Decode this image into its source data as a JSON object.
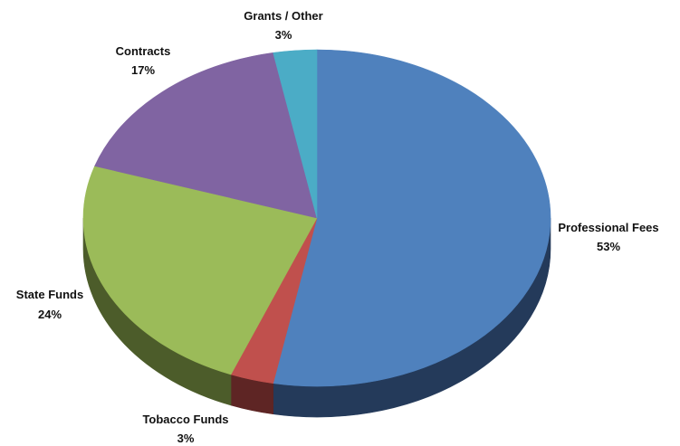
{
  "chart_data": {
    "type": "pie",
    "style": "3d",
    "legend": "none",
    "slices": [
      {
        "label": "Professional Fees",
        "value": 53,
        "value_label": "53%",
        "color": "#4F81BD",
        "side_color": "#243A5A"
      },
      {
        "label": "Tobacco Funds",
        "value": 3,
        "value_label": "3%",
        "color": "#C0504D",
        "side_color": "#5E2524"
      },
      {
        "label": "State Funds",
        "value": 24,
        "value_label": "24%",
        "color": "#9BBB59",
        "side_color": "#4C5C2A"
      },
      {
        "label": "Contracts",
        "value": 17,
        "value_label": "17%",
        "color": "#8064A2",
        "side_color": "#3F3150"
      },
      {
        "label": "Grants / Other",
        "value": 3,
        "value_label": "3%",
        "color": "#4BACC6",
        "side_color": "#245562"
      }
    ]
  }
}
